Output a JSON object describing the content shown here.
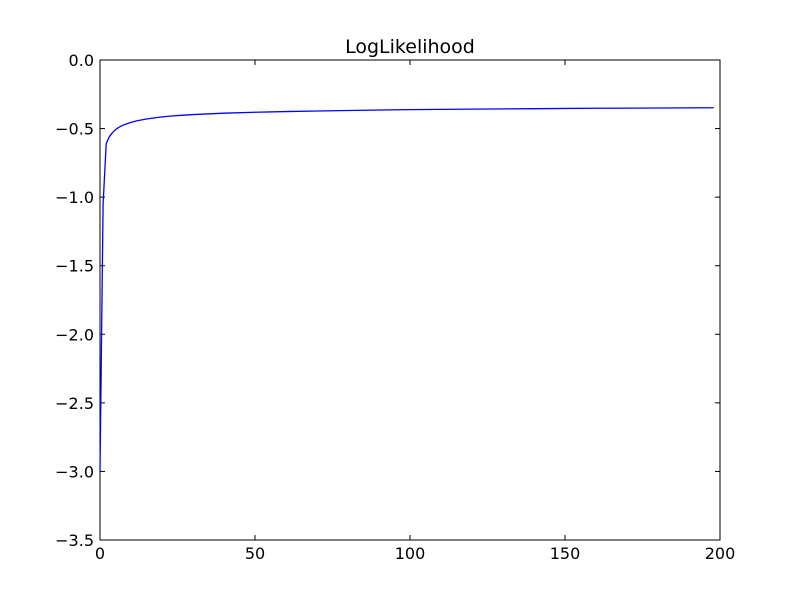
{
  "chart_data": {
    "type": "line",
    "title": "LogLikelihood",
    "xlabel": "",
    "ylabel": "",
    "xlim": [
      0,
      200
    ],
    "ylim": [
      -3.5,
      0.0
    ],
    "xticks": [
      0,
      50,
      100,
      150,
      200
    ],
    "xtick_labels": [
      "0",
      "50",
      "100",
      "150",
      "200"
    ],
    "yticks": [
      0.0,
      -0.5,
      -1.0,
      -1.5,
      -2.0,
      -2.5,
      -3.0,
      -3.5
    ],
    "ytick_labels": [
      "0.0",
      "−0.5",
      "−1.0",
      "−1.5",
      "−2.0",
      "−2.5",
      "−3.0",
      "−3.5"
    ],
    "grid": false,
    "legend": "none",
    "series": [
      {
        "color": "#0000ff",
        "x": [
          0,
          1,
          2,
          3,
          4,
          5,
          6,
          7,
          8,
          10,
          12,
          15,
          20,
          25,
          30,
          40,
          50,
          60,
          70,
          80,
          100,
          120,
          140,
          160,
          180,
          198
        ],
        "y": [
          -3.0,
          -1.05,
          -0.61,
          -0.56,
          -0.53,
          -0.508,
          -0.492,
          -0.48,
          -0.47,
          -0.455,
          -0.443,
          -0.43,
          -0.415,
          -0.405,
          -0.398,
          -0.388,
          -0.381,
          -0.376,
          -0.372,
          -0.368,
          -0.362,
          -0.358,
          -0.355,
          -0.352,
          -0.35,
          -0.348
        ]
      }
    ]
  }
}
